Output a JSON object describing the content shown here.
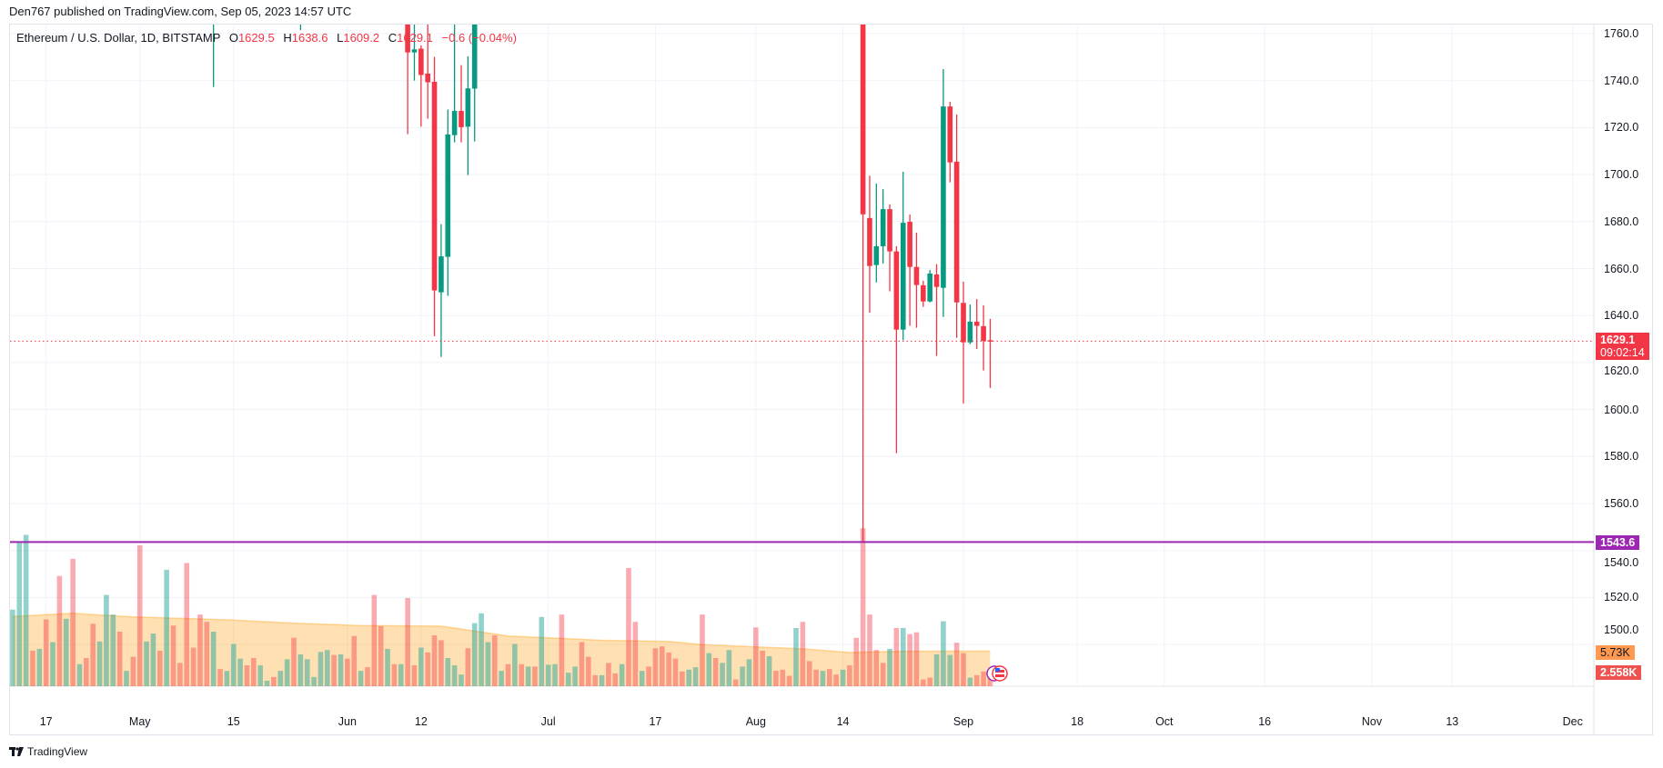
{
  "header": {
    "publish_line": "Den767 published on TradingView.com, Sep 05, 2023 14:57 UTC"
  },
  "legend": {
    "symbol": "Ethereum / U.S. Dollar, 1D, BITSTAMP",
    "o_key": "O",
    "o": "1629.5",
    "h_key": "H",
    "h": "1638.6",
    "l_key": "L",
    "l": "1609.2",
    "c_key": "C",
    "c": "1629.1",
    "change": "−0.6 (−0.04%)"
  },
  "price_axis": {
    "labels": [
      "1760.0",
      "1740.0",
      "1720.0",
      "1700.0",
      "1680.0",
      "1660.0",
      "1640.0",
      "1620.0",
      "1600.0",
      "1580.0",
      "1560.0",
      "1540.0",
      "1520.0",
      "1500.0"
    ]
  },
  "time_axis": {
    "ticks": [
      {
        "label": "17",
        "date": "2023-04-17"
      },
      {
        "label": "May",
        "date": "2023-05-01"
      },
      {
        "label": "15",
        "date": "2023-05-15"
      },
      {
        "label": "Jun",
        "date": "2023-06-01"
      },
      {
        "label": "12",
        "date": "2023-06-12"
      },
      {
        "label": "Jul",
        "date": "2023-07-01"
      },
      {
        "label": "17",
        "date": "2023-07-17"
      },
      {
        "label": "Aug",
        "date": "2023-08-01"
      },
      {
        "label": "14",
        "date": "2023-08-14"
      },
      {
        "label": "Sep",
        "date": "2023-09-01"
      },
      {
        "label": "18",
        "date": "2023-09-18"
      },
      {
        "label": "Oct",
        "date": "2023-10-01"
      },
      {
        "label": "16",
        "date": "2023-10-16"
      },
      {
        "label": "Nov",
        "date": "2023-11-01"
      },
      {
        "label": "13",
        "date": "2023-11-13"
      },
      {
        "label": "Dec",
        "date": "2023-12-01"
      }
    ]
  },
  "markers": {
    "last_price": "1629.1",
    "countdown": "09:02:14",
    "hline_price": "1543.6",
    "volume_ma": "5.73K",
    "volume_last": "2.558K"
  },
  "brand": {
    "name": "TradingView"
  },
  "colors": {
    "up": "#089981",
    "down": "#f23645",
    "hline": "#9c27b0",
    "vol_up": "rgba(38,166,154,0.5)",
    "vol_down": "rgba(242,54,69,0.42)",
    "vma_fill": "rgba(255,152,0,0.3)",
    "grid": "#f0f3fa"
  },
  "chart_data": {
    "type": "candlestick",
    "symbol": "ETHUSD",
    "interval": "1D",
    "ylim": [
      1500,
      1770
    ],
    "grid": true,
    "note_null": "null = beyond visible price range",
    "candles": [
      {
        "date": "2023-05-12",
        "o": null,
        "h": null,
        "l": 1737.3,
        "c": null,
        "dir": "up"
      },
      {
        "date": "2023-05-25",
        "o": null,
        "h": null,
        "l": 1761.5,
        "c": null,
        "dir": "up"
      },
      {
        "date": "2023-06-10",
        "o": null,
        "h": null,
        "l": 1717.2,
        "c": 1752.0,
        "dir": "down"
      },
      {
        "date": "2023-06-11",
        "o": 1752.0,
        "h": null,
        "l": 1740.0,
        "c": 1753.3,
        "dir": "up"
      },
      {
        "date": "2023-06-12",
        "o": 1753.6,
        "h": 1755.0,
        "l": 1720.4,
        "c": 1742.4,
        "dir": "down"
      },
      {
        "date": "2023-06-13",
        "o": 1743.0,
        "h": null,
        "l": 1723.8,
        "c": 1739.3,
        "dir": "down"
      },
      {
        "date": "2023-06-14",
        "o": 1739.5,
        "h": 1750.1,
        "l": 1631.2,
        "c": 1650.7,
        "dir": "down"
      },
      {
        "date": "2023-06-15",
        "o": 1649.9,
        "h": 1678.9,
        "l": 1622.4,
        "c": 1665.2,
        "dir": "up"
      },
      {
        "date": "2023-06-16",
        "o": 1665.0,
        "h": 1727.7,
        "l": 1648.4,
        "c": 1717.1,
        "dir": "up"
      },
      {
        "date": "2023-06-17",
        "o": 1716.8,
        "h": null,
        "l": 1713.7,
        "c": 1727.1,
        "dir": "up"
      },
      {
        "date": "2023-06-18",
        "o": 1727.1,
        "h": 1746.6,
        "l": 1713.7,
        "c": 1720.2,
        "dir": "down"
      },
      {
        "date": "2023-06-19",
        "o": 1720.4,
        "h": 1750.4,
        "l": 1699.8,
        "c": 1736.7,
        "dir": "up"
      },
      {
        "date": "2023-06-20",
        "o": 1736.6,
        "h": null,
        "l": 1714.1,
        "c": null,
        "dir": "up"
      },
      {
        "date": "2023-08-17",
        "o": null,
        "h": null,
        "l": 1543.6,
        "c": 1683.1,
        "dir": "down"
      },
      {
        "date": "2023-08-18",
        "o": 1681.5,
        "h": 1699.5,
        "l": 1641.2,
        "c": 1661.1,
        "dir": "down"
      },
      {
        "date": "2023-08-19",
        "o": 1661.5,
        "h": 1696.2,
        "l": 1654.1,
        "c": 1669.5,
        "dir": "up"
      },
      {
        "date": "2023-08-20",
        "o": 1669.5,
        "h": 1693.8,
        "l": 1662.1,
        "c": 1685.3,
        "dir": "up"
      },
      {
        "date": "2023-08-21",
        "o": 1685.3,
        "h": 1687.3,
        "l": 1650.3,
        "c": 1667.3,
        "dir": "down"
      },
      {
        "date": "2023-08-22",
        "o": 1667.3,
        "h": 1669.5,
        "l": 1581.4,
        "c": 1634.0,
        "dir": "down"
      },
      {
        "date": "2023-08-23",
        "o": 1634.0,
        "h": 1701.2,
        "l": 1629.5,
        "c": 1679.5,
        "dir": "up"
      },
      {
        "date": "2023-08-24",
        "o": 1679.9,
        "h": 1683.0,
        "l": 1635.6,
        "c": 1660.7,
        "dir": "down"
      },
      {
        "date": "2023-08-25",
        "o": 1660.7,
        "h": 1675.3,
        "l": 1634.8,
        "c": 1653.0,
        "dir": "down"
      },
      {
        "date": "2023-08-26",
        "o": 1652.9,
        "h": 1654.8,
        "l": 1643.7,
        "c": 1646.0,
        "dir": "down"
      },
      {
        "date": "2023-08-27",
        "o": 1646.0,
        "h": 1659.4,
        "l": 1645.6,
        "c": 1657.9,
        "dir": "up"
      },
      {
        "date": "2023-08-28",
        "o": 1657.5,
        "h": 1661.9,
        "l": 1622.8,
        "c": 1652.2,
        "dir": "down"
      },
      {
        "date": "2023-08-29",
        "o": 1651.8,
        "h": 1744.9,
        "l": 1639.4,
        "c": 1729.0,
        "dir": "up"
      },
      {
        "date": "2023-08-30",
        "o": 1729.0,
        "h": 1731.0,
        "l": 1696.7,
        "c": 1705.2,
        "dir": "down"
      },
      {
        "date": "2023-08-31",
        "o": 1705.5,
        "h": 1725.6,
        "l": 1630.5,
        "c": 1645.6,
        "dir": "down"
      },
      {
        "date": "2023-09-01",
        "o": 1645.4,
        "h": 1654.4,
        "l": 1602.6,
        "c": 1628.6,
        "dir": "down"
      },
      {
        "date": "2023-09-02",
        "o": 1628.6,
        "h": 1644.7,
        "l": 1627.8,
        "c": 1637.4,
        "dir": "up"
      },
      {
        "date": "2023-09-03",
        "o": 1637.4,
        "h": 1647.0,
        "l": 1625.8,
        "c": 1635.6,
        "dir": "down"
      },
      {
        "date": "2023-09-04",
        "o": 1635.5,
        "h": 1644.3,
        "l": 1616.6,
        "c": 1629.2,
        "dir": "down"
      },
      {
        "date": "2023-09-05",
        "o": 1629.5,
        "h": 1638.6,
        "l": 1609.2,
        "c": 1629.1,
        "dir": "down"
      }
    ],
    "horizontal_line": 1543.6,
    "last_price": 1629.1,
    "volume": {
      "unit": "K",
      "start_date": "2023-04-12",
      "values": [
        12.5,
        23.4,
        24.7,
        5.8,
        6.1,
        10.9,
        7.2,
        18.0,
        11.0,
        20.8,
        3.6,
        4.6,
        10.2,
        7.3,
        14.9,
        11.7,
        8.9,
        2.5,
        4.8,
        23.0,
        7.3,
        8.6,
        5.8,
        19.0,
        9.9,
        3.8,
        20.1,
        6.3,
        11.7,
        10.5,
        8.9,
        2.8,
        2.5,
        6.9,
        4.5,
        3.4,
        4.6,
        3.4,
        0.9,
        1.5,
        2.5,
        4.4,
        7.9,
        5.2,
        4.4,
        1.5,
        5.6,
        5.9,
        5.1,
        5.2,
        4.5,
        8.2,
        2.5,
        3.1,
        14.9,
        9.8,
        6.1,
        3.6,
        3.6,
        14.4,
        3.4,
        6.3,
        5.5,
        8.3,
        7.5,
        4.6,
        3.4,
        1.9,
        6.2,
        10.3,
        11.9,
        7.2,
        8.3,
        2.5,
        3.6,
        6.9,
        3.6,
        3.2,
        3.2,
        11.3,
        3.5,
        3.6,
        11.7,
        2.2,
        3.2,
        7.2,
        4.8,
        1.8,
        1.8,
        3.8,
        2.1,
        3.6,
        19.3,
        10.5,
        2.5,
        3.2,
        6.2,
        6.5,
        5.5,
        4.5,
        2.4,
        2.7,
        3.1,
        11.7,
        5.4,
        4.6,
        3.8,
        5.9,
        1.1,
        3.2,
        4.4,
        9.6,
        5.8,
        4.9,
        2.5,
        2.7,
        1.7,
        9.5,
        10.5,
        4.1,
        2.7,
        2.5,
        2.8,
        1.9,
        2.7,
        3.4,
        7.9,
        25.8,
        11.7,
        5.9,
        3.8,
        6.1,
        9.5,
        9.5,
        8.5,
        8.8,
        1.1,
        1.4,
        5.2,
        10.6,
        5.1,
        7.1,
        5.4,
        1.4,
        1.8,
        2.4,
        2.558
      ],
      "dirs": "gggrgrgrgrgrrgggrgrrggrgrrrrrrgrgggrrggrggrgggggrgrrgrrrgrgrrgrrrgggrgggrgrgrgrgggrggrrrgrrgrrgrrrrrrggrgrggrggrrgrrrgrrrgrrgrrrrrrgrgrrrrgggrrgrrrgrgrrrgrrr",
      "ma_points": [
        {
          "date": "2023-04-12",
          "v": 11.4
        },
        {
          "date": "2023-04-21",
          "v": 11.9
        },
        {
          "date": "2023-04-30",
          "v": 11.3
        },
        {
          "date": "2023-05-15",
          "v": 10.8
        },
        {
          "date": "2023-05-24",
          "v": 10.3
        },
        {
          "date": "2023-06-03",
          "v": 9.9
        },
        {
          "date": "2023-06-15",
          "v": 9.8
        },
        {
          "date": "2023-06-20",
          "v": 9.0
        },
        {
          "date": "2023-06-25",
          "v": 8.2
        },
        {
          "date": "2023-07-09",
          "v": 7.5
        },
        {
          "date": "2023-07-19",
          "v": 7.3
        },
        {
          "date": "2023-07-24",
          "v": 6.8
        },
        {
          "date": "2023-08-08",
          "v": 6.1
        },
        {
          "date": "2023-08-15",
          "v": 5.5
        },
        {
          "date": "2023-08-22",
          "v": 5.7
        },
        {
          "date": "2023-09-05",
          "v": 5.73
        }
      ]
    }
  }
}
